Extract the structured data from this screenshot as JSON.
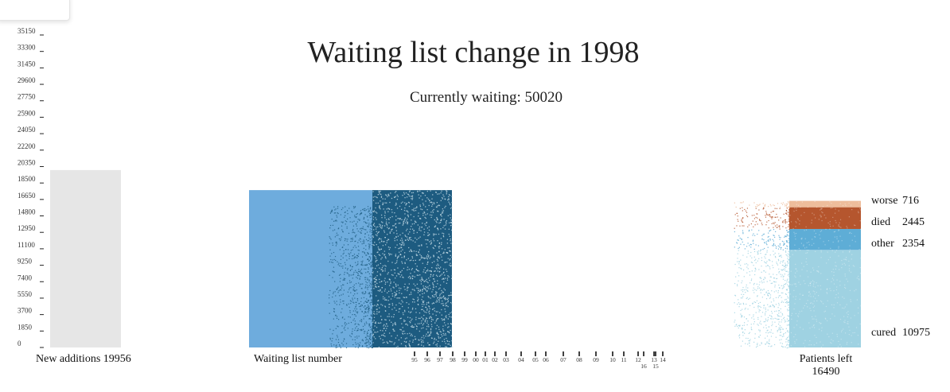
{
  "chart_data": {
    "type": "bar",
    "title": "Waiting list change in 1998",
    "subtitle": "Currently waiting: 50020",
    "y_axis": {
      "ticks": [
        0,
        1850,
        3700,
        5550,
        7400,
        9250,
        11100,
        12950,
        14800,
        16650,
        18500,
        20350,
        22200,
        24050,
        25900,
        27750,
        29600,
        31450,
        33300,
        35150
      ],
      "ylim": [
        0,
        35150
      ]
    },
    "new_additions": {
      "label": "New additions",
      "value": 19956,
      "color": "#e6e6e6"
    },
    "waiting_list": {
      "label": "Waiting list number",
      "value": 17700,
      "colors": {
        "fill": "#6eacdd",
        "dots": "#1d5b80"
      }
    },
    "year_ticks": [
      "95",
      "96",
      "97",
      "98",
      "99",
      "00",
      "01",
      "02",
      "03",
      "04",
      "05",
      "06",
      "07",
      "08",
      "09",
      "10",
      "11",
      "12",
      "13",
      "14",
      "15",
      "16"
    ],
    "patients_left": {
      "label": "Patients left",
      "total": 16490,
      "segments": [
        {
          "name": "cured",
          "value": 10975,
          "color": "#9fd2e2"
        },
        {
          "name": "other",
          "value": 2354,
          "color": "#5eadd6"
        },
        {
          "name": "died",
          "value": 2445,
          "color": "#b5562e"
        },
        {
          "name": "worse",
          "value": 716,
          "color": "#eebd9b"
        }
      ]
    }
  }
}
